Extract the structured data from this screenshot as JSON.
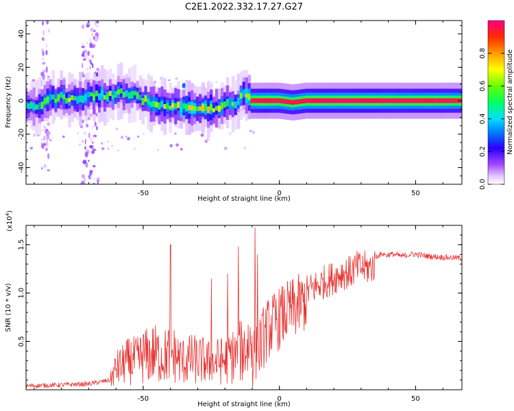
{
  "figure_title": "C2E1.2022.332.17.27.G27",
  "colors": {
    "snr_line": "#e8312f",
    "frame": "#000000"
  },
  "chart_data": [
    {
      "type": "heatmap",
      "xlabel": "Height of straight line (km)",
      "ylabel": "Frequency (Hz)",
      "xlim": [
        -93,
        67
      ],
      "ylim": [
        -50,
        48
      ],
      "x_ticks": [
        -50,
        0,
        50
      ],
      "x_tick_labels": [
        "-50",
        "0",
        "50"
      ],
      "y_ticks": [
        -40,
        -20,
        0,
        20,
        40
      ],
      "y_tick_labels": [
        "-40",
        "-20",
        "0",
        "20",
        "40"
      ],
      "colorbar": {
        "label": "Normalized spectral amplitude",
        "range": [
          0,
          1
        ],
        "ticks": [
          0,
          0.2,
          0.4,
          0.6,
          0.8
        ],
        "tick_labels": [
          "0.0",
          "0.2",
          "0.4",
          "0.6",
          "0.8"
        ]
      },
      "ridge": {
        "x": [
          -93,
          -88,
          -84,
          -80,
          -76,
          -72,
          -68,
          -64,
          -60,
          -56,
          -52,
          -48,
          -44,
          -40,
          -36,
          -32,
          -28,
          -24,
          -20,
          -16,
          -13,
          -10,
          -5,
          0,
          5,
          10,
          20,
          30,
          40,
          50,
          60,
          67
        ],
        "freq": [
          -2,
          -3,
          1,
          2,
          1,
          2,
          3,
          3,
          4,
          5,
          3,
          -1,
          -3,
          -3,
          -4,
          -5,
          -5,
          -5,
          -3,
          -1,
          4,
          0,
          0,
          0,
          -1,
          0,
          0,
          0,
          0,
          0,
          0,
          0
        ],
        "amplitude": [
          0.45,
          0.5,
          0.5,
          0.5,
          0.55,
          0.55,
          0.5,
          0.55,
          0.5,
          0.45,
          0.5,
          0.5,
          0.55,
          0.55,
          0.6,
          0.7,
          0.7,
          0.6,
          0.5,
          0.5,
          0.5,
          0.95,
          0.97,
          0.95,
          0.95,
          0.97,
          0.98,
          0.98,
          0.97,
          0.96,
          0.96,
          0.95
        ]
      },
      "scatter_columns": [
        {
          "x": -86,
          "amplitude": 0.1
        },
        {
          "x": -71,
          "amplitude": 0.15
        },
        {
          "x": -68,
          "amplitude": 0.15
        }
      ],
      "blobs": [
        {
          "x": -35,
          "freq": 9,
          "amplitude": 0.3
        }
      ]
    },
    {
      "type": "line",
      "xlabel": "Height of straight line (km)",
      "ylabel": "SNR (10 * v/v)",
      "y_exponent_label": "(x10",
      "y_exponent_power": "4",
      "y_exponent_close": ")",
      "xlim": [
        -93,
        67
      ],
      "ylim": [
        0,
        1.7
      ],
      "x_ticks": [
        -50,
        0,
        50
      ],
      "x_tick_labels": [
        "-50",
        "0",
        "50"
      ],
      "y_ticks": [
        0.5,
        1.0,
        1.5
      ],
      "y_tick_labels": [
        "0.5",
        "1.0",
        "1.5"
      ],
      "series": [
        {
          "x": [
            -93,
            -80,
            -70,
            -62,
            -60,
            -58,
            -55,
            -52,
            -50,
            -48,
            -46,
            -44,
            -42,
            -40,
            -38,
            -36,
            -34,
            -32,
            -30,
            -28,
            -26,
            -24,
            -22,
            -20,
            -18,
            -16,
            -14,
            -12,
            -10,
            -8,
            -6,
            -4,
            -2,
            0,
            2,
            5,
            8,
            10,
            13,
            16,
            20,
            23,
            26,
            28,
            30,
            33,
            36,
            38,
            40,
            42,
            45,
            48,
            50,
            55,
            60,
            67
          ],
          "y": [
            0.04,
            0.05,
            0.06,
            0.1,
            0.22,
            0.25,
            0.3,
            0.3,
            0.35,
            0.35,
            0.38,
            0.35,
            0.35,
            0.38,
            0.35,
            0.3,
            0.3,
            0.32,
            0.3,
            0.3,
            0.28,
            0.28,
            0.3,
            0.3,
            0.35,
            0.35,
            0.4,
            0.45,
            0.5,
            0.55,
            0.7,
            0.8,
            0.85,
            0.9,
            0.95,
            1.0,
            1.05,
            1.1,
            1.15,
            1.2,
            1.25,
            1.3,
            1.3,
            1.35,
            1.35,
            1.35,
            1.4,
            1.42,
            1.4,
            1.4,
            1.38,
            1.4,
            1.4,
            1.38,
            1.37,
            1.36
          ],
          "spikes": [
            {
              "x": -40,
              "y": 1.5
            },
            {
              "x": -15,
              "y": 1.48
            },
            {
              "x": -9,
              "y": 1.68
            },
            {
              "x": -8,
              "y": 1.4
            },
            {
              "x": -19,
              "y": 1.2
            },
            {
              "x": -25,
              "y": 1.15
            }
          ]
        }
      ]
    }
  ]
}
